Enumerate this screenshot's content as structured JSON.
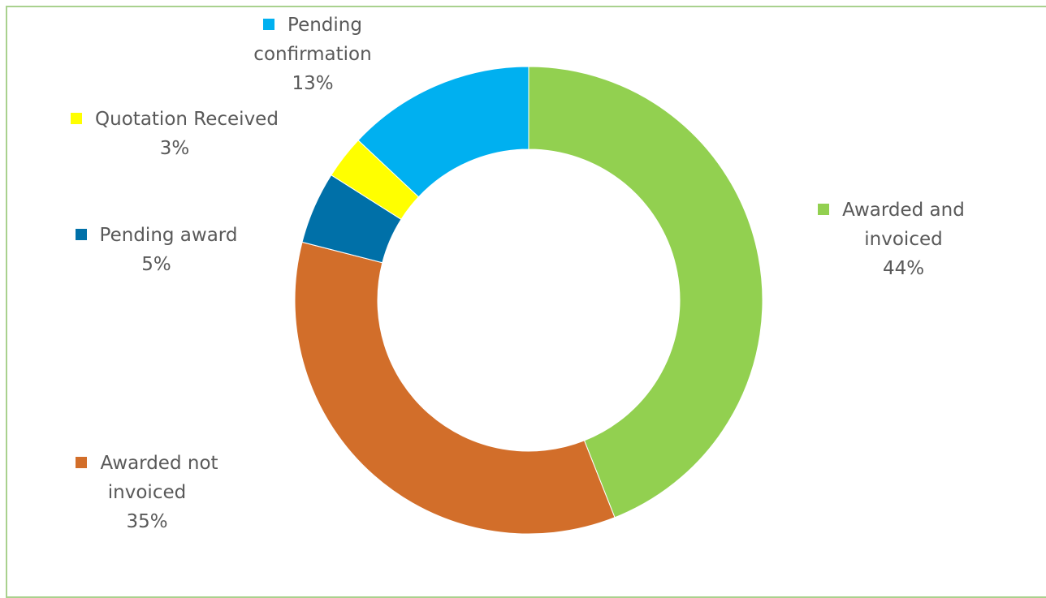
{
  "chart_data": {
    "type": "donut",
    "title": "",
    "slices": [
      {
        "label_lines": [
          "Awarded and",
          "invoiced"
        ],
        "percent_label": "44%",
        "value": 44,
        "color": "#92d050"
      },
      {
        "label_lines": [
          "Awarded not",
          "invoiced"
        ],
        "percent_label": "35%",
        "value": 35,
        "color": "#d26e2a"
      },
      {
        "label_lines": [
          "Pending award"
        ],
        "percent_label": "5%",
        "value": 5,
        "color": "#0070a8"
      },
      {
        "label_lines": [
          "Quotation Received"
        ],
        "percent_label": "3%",
        "value": 3,
        "color": "#ffff00"
      },
      {
        "label_lines": [
          "Pending",
          "confirmation"
        ],
        "percent_label": "13%",
        "value": 13,
        "color": "#00b0f0"
      }
    ]
  },
  "labels": {
    "awarded_invoiced": {
      "line1": "Awarded and",
      "line2": "invoiced",
      "pct": "44%"
    },
    "awarded_not_invoiced": {
      "line1": "Awarded not",
      "line2": "invoiced",
      "pct": "35%"
    },
    "pending_award": {
      "line1": "Pending award",
      "pct": "5%"
    },
    "quotation_received": {
      "line1": "Quotation Received",
      "pct": "3%"
    },
    "pending_confirmation": {
      "line1": "Pending",
      "line2": "confirmation",
      "pct": "13%"
    }
  }
}
